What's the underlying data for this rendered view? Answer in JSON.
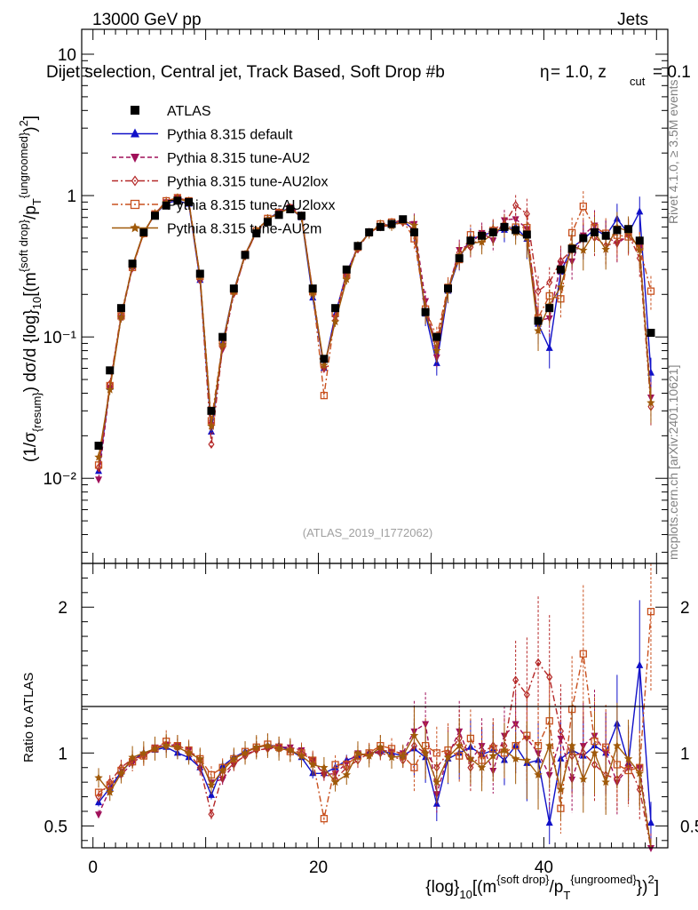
{
  "header": {
    "energy_label": "13000 GeV pp",
    "category_label": "Jets",
    "selection_title": "Dijet selection, Central jet, Track Based, Soft Drop #b",
    "params_label": "= 1.0, z",
    "params_sub": "cut",
    "params_tail": " = 0.1",
    "beta_symbol": "η"
  },
  "side": {
    "rivet_label": "Rivet 4.1.0, ≥ 3.5M events",
    "mcplots_label": "mcplots.cern.ch [arXiv:2401.10621]"
  },
  "analysis_id": "(ATLAS_2019_I1772062)",
  "axes": {
    "y_main_label": "(1/σ_{resum}) dσ/d{log}_10[(m^{soft drop}/p_T^{ungroomed})^2]",
    "y_main_ticks": [
      "10⁻²",
      "10⁻¹",
      "1",
      "10"
    ],
    "y_ratio_label": "Ratio to ATLAS",
    "y_ratio_ticks_left": [
      "0.5",
      "1",
      "2"
    ],
    "y_ratio_ticks_right": [
      "0.5",
      "1",
      "2"
    ],
    "x_label": "{log}_10[(m^{soft drop}/p_T^{ungroomed})^2]",
    "x_ticks": [
      "0",
      "20",
      "40"
    ]
  },
  "legend": [
    {
      "name": "ATLAS",
      "color": "#000000",
      "marker": "square-filled",
      "line": "none"
    },
    {
      "name": "Pythia 8.315 default",
      "color": "#1010c8",
      "marker": "triangle-up-filled",
      "line": "solid"
    },
    {
      "name": "Pythia 8.315 tune-AU2",
      "color": "#a0105a",
      "marker": "triangle-down-filled",
      "line": "dashed"
    },
    {
      "name": "Pythia 8.315 tune-AU2lox",
      "color": "#b42828",
      "marker": "diamond-open",
      "line": "dashdot"
    },
    {
      "name": "Pythia 8.315 tune-AU2loxx",
      "color": "#c8501e",
      "marker": "square-open",
      "line": "dashdot"
    },
    {
      "name": "Pythia 8.315 tune-AU2m",
      "color": "#a05a0a",
      "marker": "star",
      "line": "solid"
    }
  ],
  "chart_data": {
    "type": "line",
    "title": "Dijet selection, Central jet, Track Based, Soft Drop #b = 1.0, z_cut = 0.1",
    "xlabel": "{log}_10[(m^{soft drop}/p_T^{ungroomed})^2]",
    "ylabel": "(1/σ_{resum}) dσ/d{log}_10[(m^{soft drop}/p_T^{ungroomed})^2]",
    "xlim": [
      -1,
      51
    ],
    "ylim": [
      0.0025,
      15
    ],
    "yscale": "log",
    "ratio_ylim": [
      0.35,
      2.3
    ],
    "x": [
      0.5,
      1.5,
      2.5,
      3.5,
      4.5,
      5.5,
      6.5,
      7.5,
      8.5,
      9.5,
      10.5,
      11.5,
      12.5,
      13.5,
      14.5,
      15.5,
      16.5,
      17.5,
      18.5,
      19.5,
      20.5,
      21.5,
      22.5,
      23.5,
      24.5,
      25.5,
      26.5,
      27.5,
      28.5,
      29.5,
      30.5,
      31.5,
      32.5,
      33.5,
      34.5,
      35.5,
      36.5,
      37.5,
      38.5,
      39.5,
      40.5,
      41.5,
      42.5,
      43.5,
      44.5,
      45.5,
      46.5,
      47.5,
      48.5,
      49.5
    ],
    "data_series": {
      "name": "ATLAS",
      "values": [
        0.017,
        0.058,
        0.16,
        0.33,
        0.55,
        0.72,
        0.85,
        0.92,
        0.9,
        0.28,
        0.03,
        0.1,
        0.22,
        0.38,
        0.54,
        0.65,
        0.73,
        0.8,
        0.72,
        0.22,
        0.07,
        0.16,
        0.3,
        0.44,
        0.55,
        0.6,
        0.63,
        0.68,
        0.55,
        0.15,
        0.1,
        0.22,
        0.36,
        0.48,
        0.52,
        0.55,
        0.6,
        0.57,
        0.53,
        0.13,
        0.16,
        0.3,
        0.42,
        0.5,
        0.55,
        0.52,
        0.57,
        0.58,
        0.48,
        0.107
      ]
    },
    "series": [
      {
        "name": "Pythia 8.315 default",
        "ratio": [
          0.66,
          0.76,
          0.87,
          0.95,
          1.0,
          1.02,
          1.04,
          1.0,
          0.97,
          0.9,
          0.71,
          0.91,
          0.97,
          1.01,
          1.04,
          1.05,
          1.05,
          1.02,
          0.97,
          0.86,
          0.86,
          0.9,
          0.95,
          0.98,
          1.0,
          1.01,
          1.0,
          0.98,
          1.03,
          0.97,
          0.65,
          0.96,
          1.0,
          1.04,
          0.99,
          1.02,
          0.95,
          1.05,
          0.93,
          0.95,
          0.52,
          0.96,
          1.02,
          0.98,
          1.05,
          1.0,
          1.2,
          0.93,
          1.6,
          0.52
        ]
      },
      {
        "name": "Pythia 8.315 tune-AU2",
        "ratio": [
          0.58,
          0.75,
          0.85,
          0.93,
          0.99,
          1.04,
          1.06,
          1.05,
          1.02,
          0.95,
          0.8,
          0.82,
          0.92,
          0.99,
          1.02,
          1.03,
          1.04,
          1.04,
          1.02,
          0.95,
          0.85,
          0.86,
          0.93,
          1.0,
          0.98,
          1.02,
          1.01,
          1.0,
          1.15,
          1.2,
          0.72,
          0.98,
          1.15,
          0.95,
          1.05,
          0.88,
          1.12,
          1.2,
          1.1,
          1.0,
          0.85,
          1.1,
          0.82,
          1.05,
          1.12,
          1.0,
          0.8,
          0.9,
          0.9,
          0.35
        ]
      },
      {
        "name": "Pythia 8.315 tune-AU2lox",
        "ratio": [
          0.7,
          0.8,
          0.9,
          0.96,
          0.98,
          1.03,
          1.05,
          1.04,
          1.0,
          0.9,
          0.58,
          0.85,
          0.93,
          0.98,
          1.02,
          1.03,
          1.03,
          1.02,
          1.0,
          0.95,
          0.86,
          0.82,
          0.9,
          0.95,
          1.0,
          1.0,
          0.98,
          0.95,
          1.05,
          1.0,
          0.9,
          1.0,
          1.1,
          0.9,
          1.0,
          1.05,
          1.05,
          1.5,
          1.4,
          1.62,
          1.52,
          1.15,
          0.98,
          1.0,
          0.92,
          0.85,
          0.82,
          0.92,
          0.75,
          0.3
        ]
      },
      {
        "name": "Pythia 8.315 tune-AU2loxx",
        "ratio": [
          0.73,
          0.78,
          0.88,
          0.94,
          0.98,
          1.03,
          1.08,
          1.05,
          1.02,
          0.96,
          0.85,
          0.9,
          0.96,
          1.01,
          1.04,
          1.06,
          1.04,
          1.01,
          1.0,
          0.95,
          0.55,
          0.92,
          0.92,
          0.98,
          1.0,
          1.05,
          1.03,
          0.98,
          0.9,
          1.05,
          1.0,
          1.02,
          0.98,
          1.1,
          0.95,
          1.03,
          1.0,
          1.05,
          1.12,
          1.05,
          1.22,
          0.62,
          1.3,
          1.68,
          1.08,
          1.04,
          0.92,
          0.88,
          0.9,
          1.97
        ]
      },
      {
        "name": "Pythia 8.315 tune-AU2m",
        "ratio": [
          0.83,
          0.73,
          0.86,
          0.97,
          1.0,
          1.03,
          1.05,
          1.04,
          1.0,
          0.96,
          0.78,
          0.88,
          0.96,
          1.0,
          1.04,
          1.05,
          1.03,
          1.02,
          0.98,
          0.92,
          0.9,
          0.8,
          0.85,
          1.0,
          0.98,
          1.04,
          0.97,
          0.98,
          1.12,
          1.0,
          0.8,
          0.97,
          1.05,
          0.96,
          0.9,
          0.98,
          1.02,
          0.96,
          0.95,
          0.85,
          1.05,
          0.75,
          1.05,
          0.82,
          1.0,
          0.8,
          1.05,
          0.96,
          0.86,
          0.32
        ]
      }
    ],
    "ratio_reference": 1
  }
}
